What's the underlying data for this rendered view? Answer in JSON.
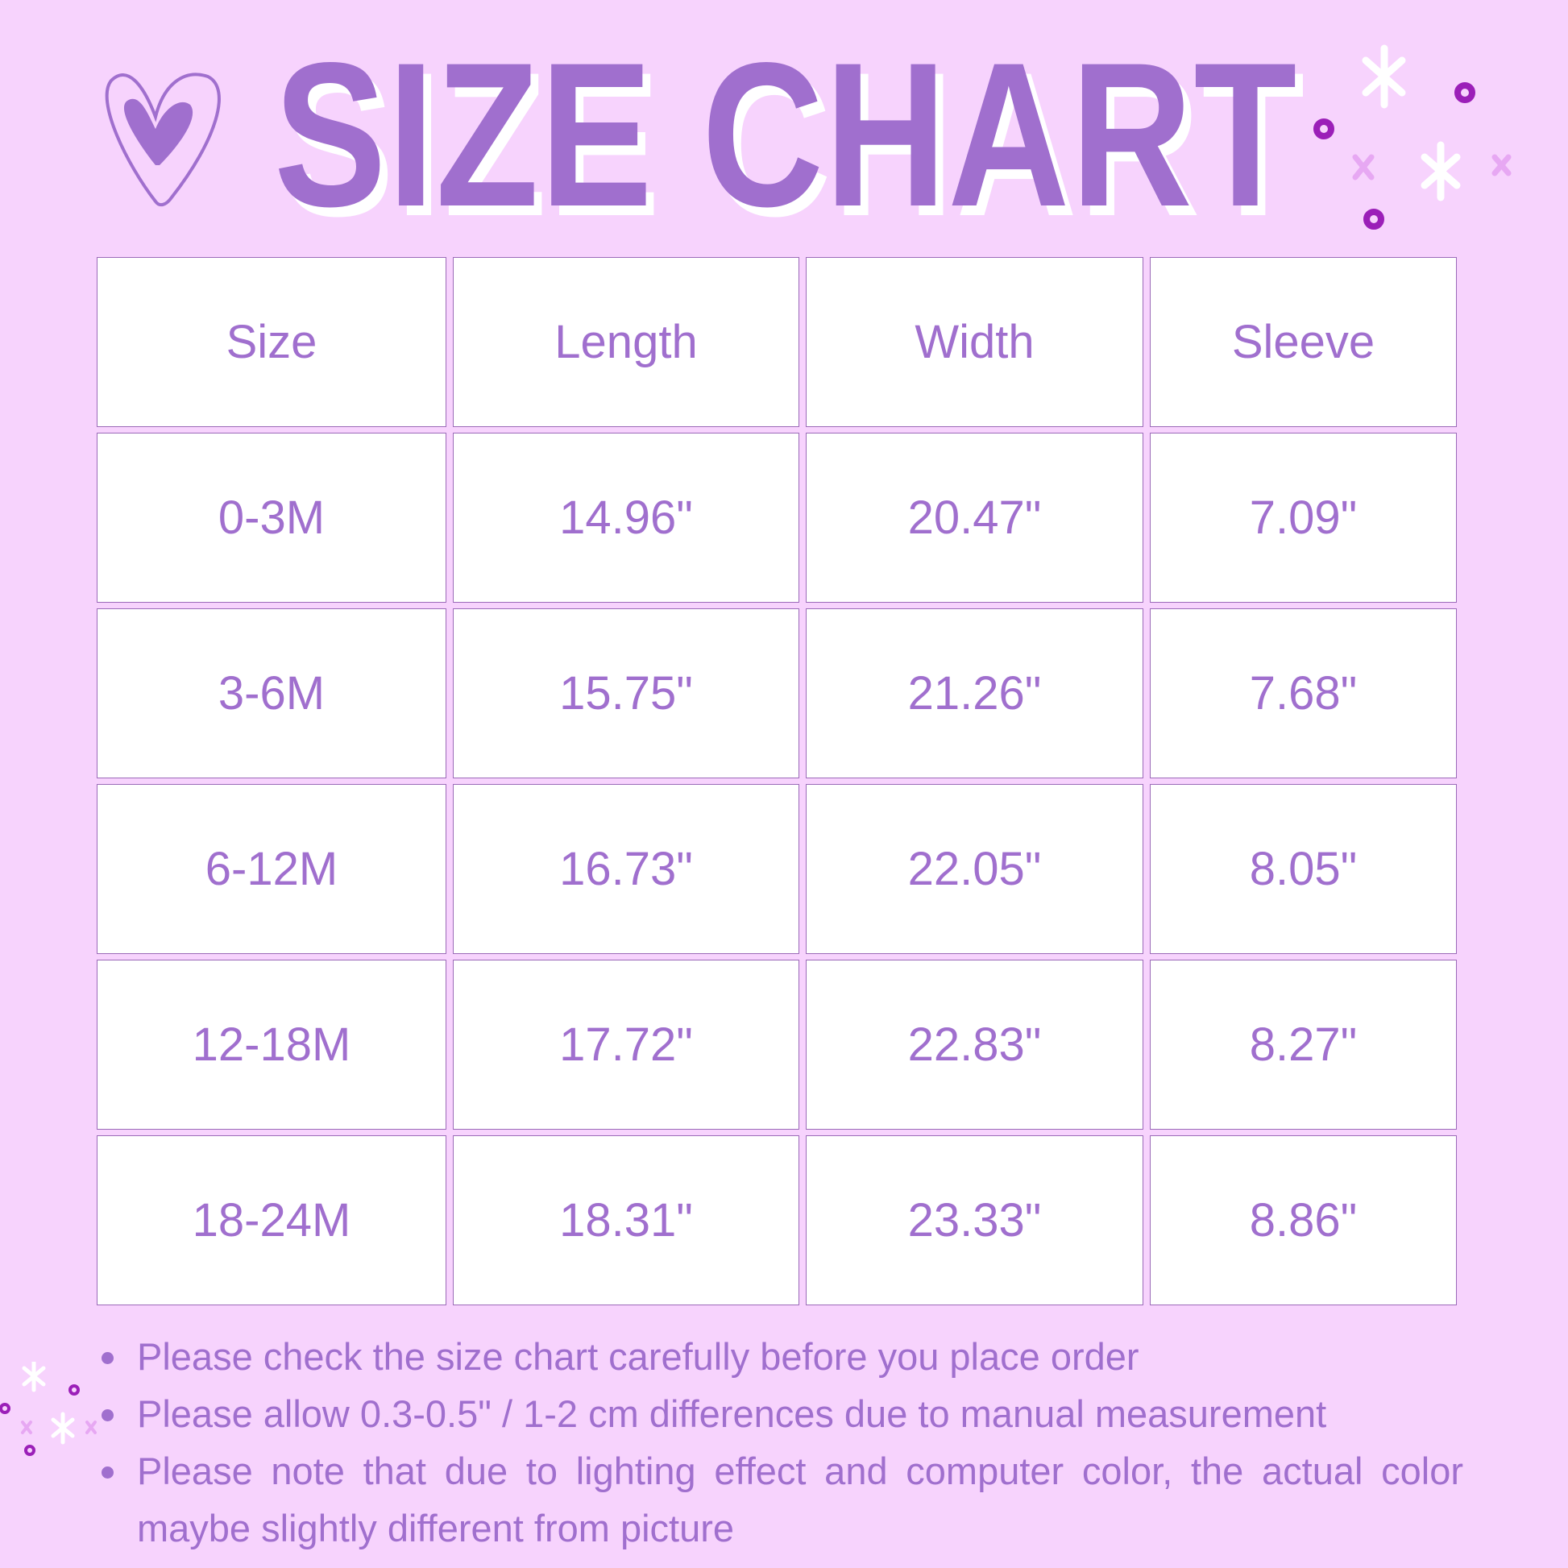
{
  "title": "SIZE CHART",
  "colors": {
    "background": "#f7d3fd",
    "accent": "#a06fce",
    "dot": "#9b1fb8",
    "cell": "#ffffff"
  },
  "icons": [
    "heart-icon",
    "sparkle-icon"
  ],
  "table": {
    "headers": [
      "Size",
      "Length",
      "Width",
      "Sleeve"
    ],
    "rows": [
      [
        "0-3M",
        "14.96\"",
        "20.47\"",
        "7.09\""
      ],
      [
        "3-6M",
        "15.75\"",
        "21.26\"",
        "7.68\""
      ],
      [
        "6-12M",
        "16.73\"",
        "22.05\"",
        "8.05\""
      ],
      [
        "12-18M",
        "17.72\"",
        "22.83\"",
        "8.27\""
      ],
      [
        "18-24M",
        "18.31\"",
        "23.33\"",
        "8.86\""
      ]
    ]
  },
  "notes": [
    "Please check the size chart carefully before you place order",
    "Please allow 0.3-0.5\" / 1-2 cm differences due to manual measurement",
    "Please note that due to lighting effect and computer color, the actual color maybe slightly different from picture"
  ]
}
